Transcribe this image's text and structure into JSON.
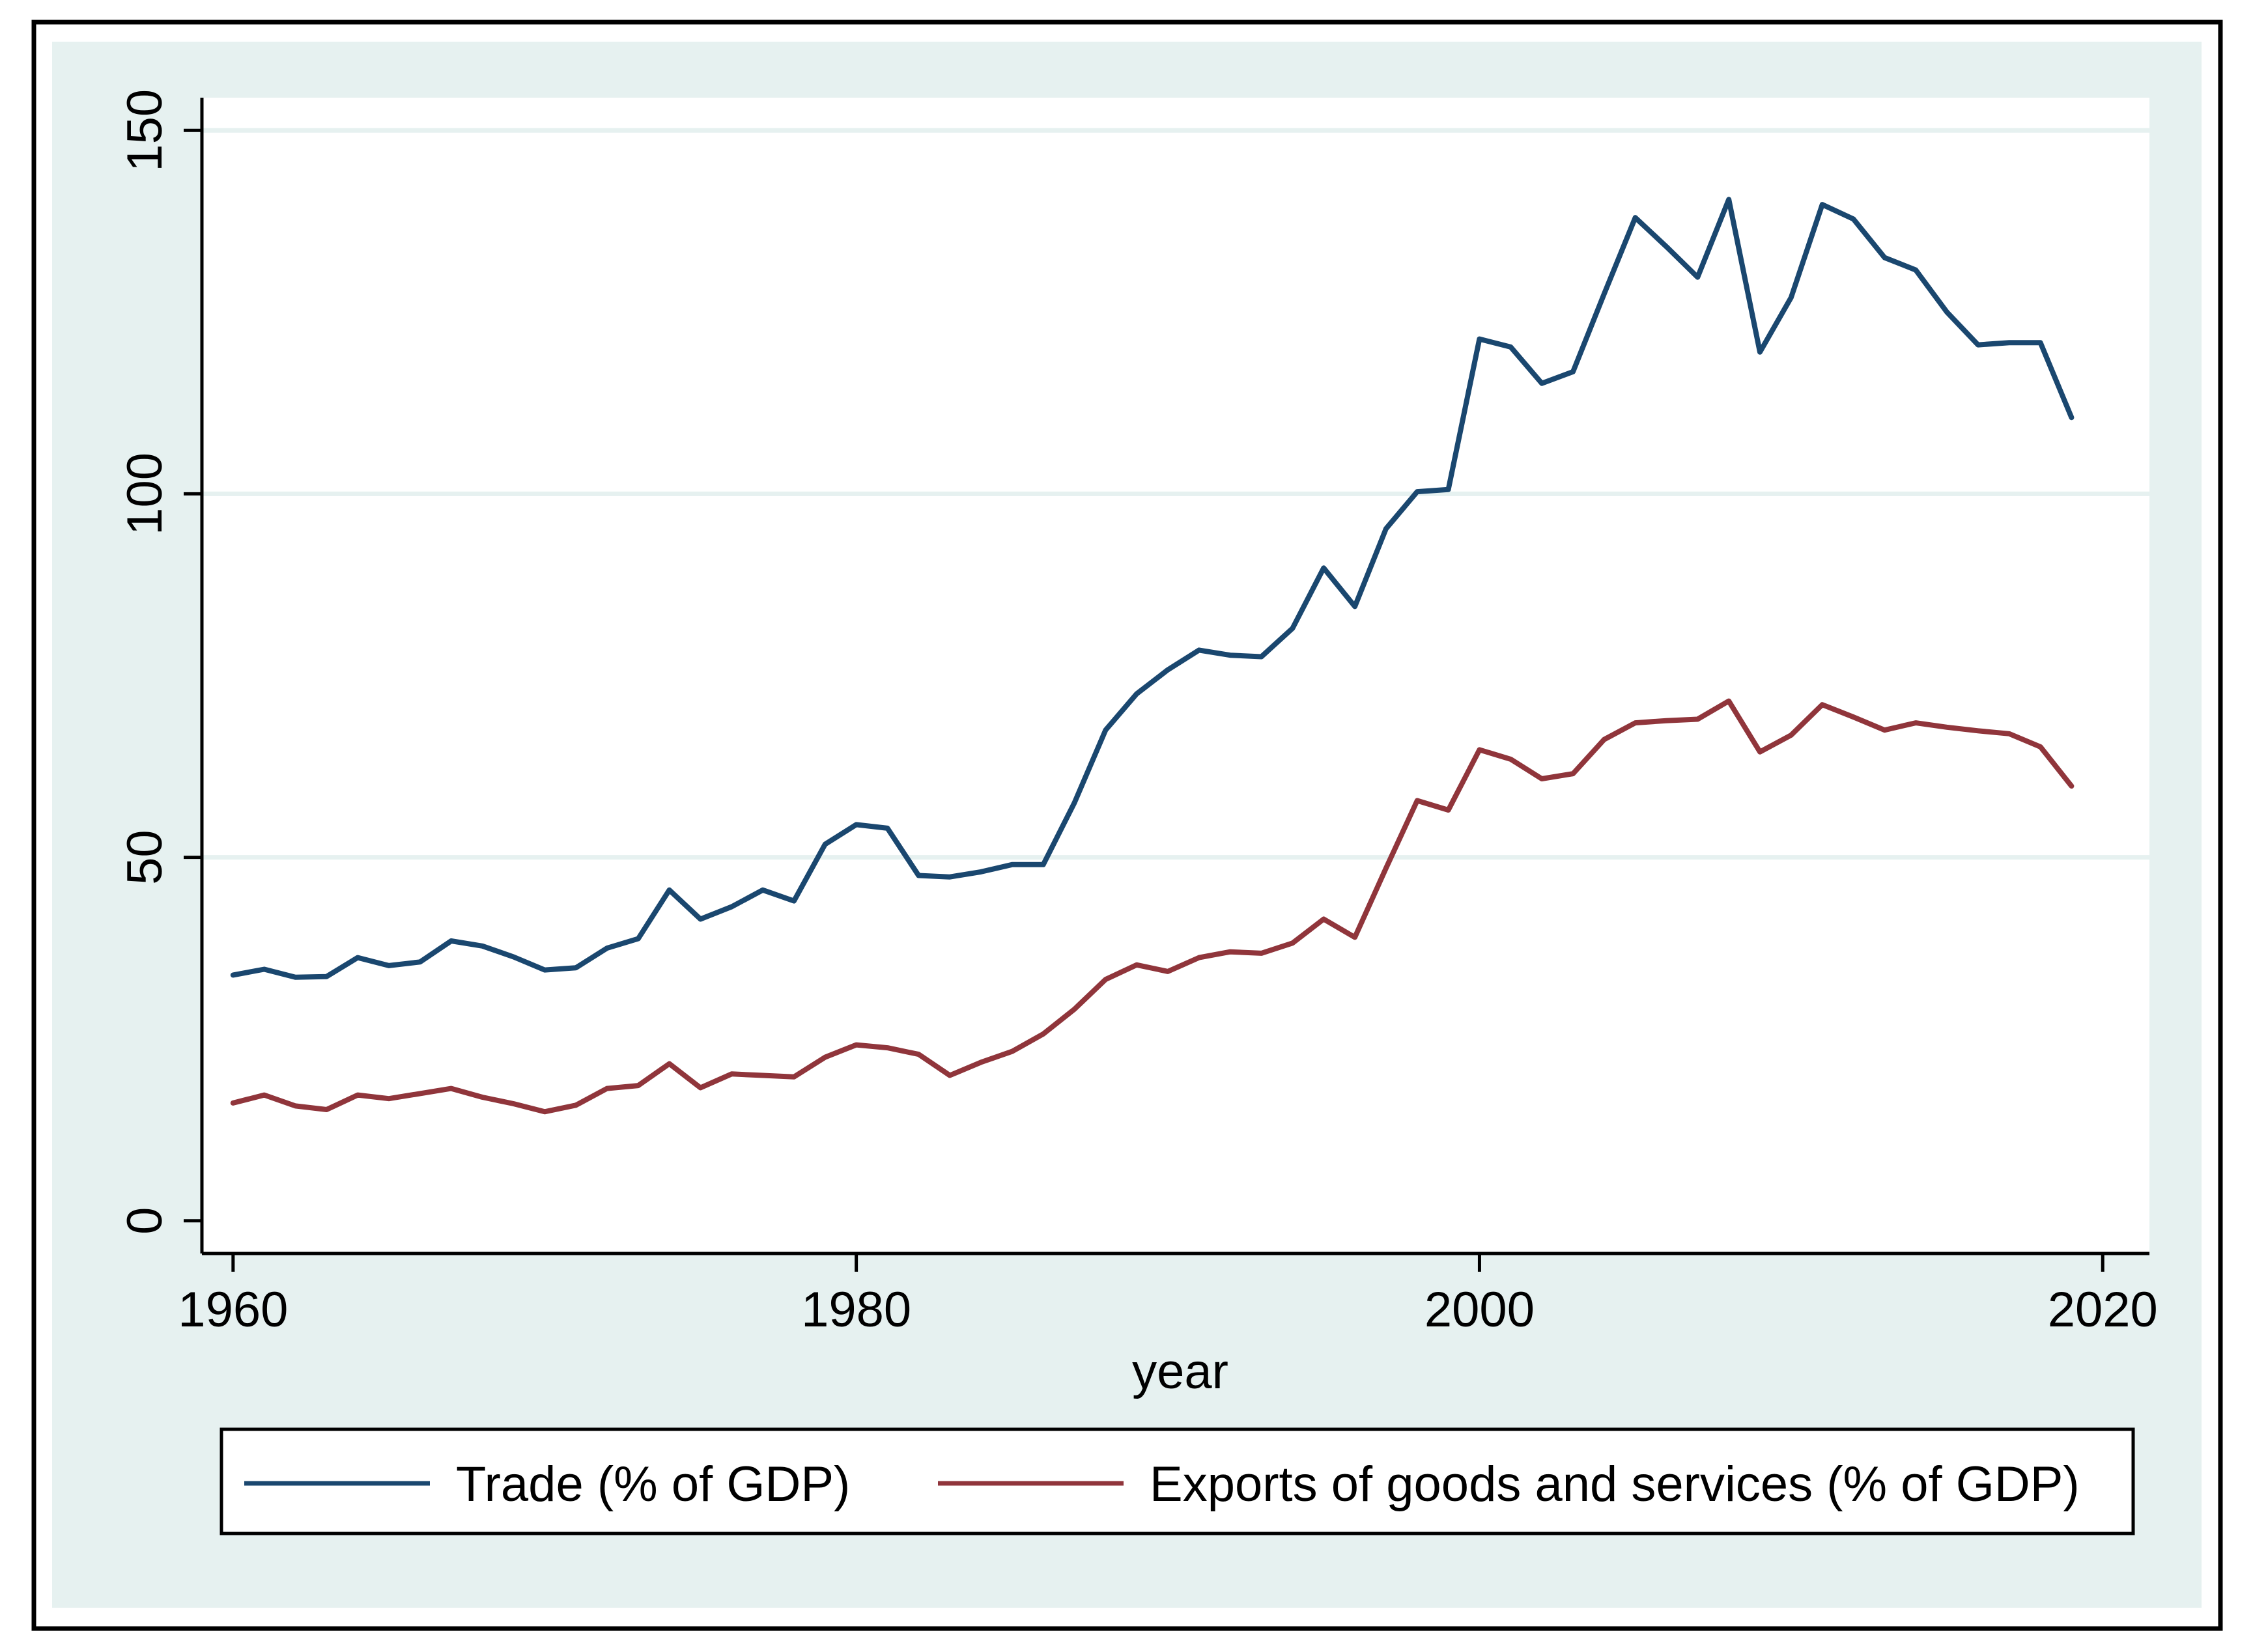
{
  "colors": {
    "outer_background": "#e6f1f0",
    "plot_background": "#ffffff",
    "gridline": "#e6f1f0",
    "trade": "#1a476f",
    "exports": "#90353b"
  },
  "chart_data": {
    "type": "line",
    "title": "",
    "xlabel": "year",
    "ylabel": "",
    "xlim": [
      1959,
      2021.5
    ],
    "ylim": [
      -4.5,
      154.5
    ],
    "xticks": [
      1960,
      1980,
      2000,
      2020
    ],
    "yticks": [
      0,
      50,
      100,
      150
    ],
    "grid": true,
    "legend_position": "bottom",
    "x": [
      1960,
      1961,
      1962,
      1963,
      1964,
      1965,
      1966,
      1967,
      1968,
      1969,
      1970,
      1971,
      1972,
      1973,
      1974,
      1975,
      1976,
      1977,
      1978,
      1979,
      1980,
      1981,
      1982,
      1983,
      1984,
      1985,
      1986,
      1987,
      1988,
      1989,
      1990,
      1991,
      1992,
      1993,
      1994,
      1995,
      1996,
      1997,
      1998,
      1999,
      2000,
      2001,
      2002,
      2003,
      2004,
      2005,
      2006,
      2007,
      2008,
      2009,
      2010,
      2011,
      2012,
      2013,
      2014,
      2015,
      2016,
      2017,
      2018,
      2019
    ],
    "series": [
      {
        "name": "Trade (% of GDP)",
        "color_key": "trade",
        "values": [
          33.8,
          34.6,
          33.5,
          33.6,
          36.2,
          35.1,
          35.6,
          38.5,
          37.8,
          36.3,
          34.5,
          34.8,
          37.5,
          38.8,
          45.5,
          41.5,
          43.2,
          45.5,
          44.0,
          51.8,
          54.5,
          54.0,
          47.5,
          47.3,
          48.0,
          49.0,
          49.0,
          57.5,
          67.5,
          72.5,
          75.8,
          78.5,
          77.8,
          77.6,
          81.5,
          89.8,
          84.5,
          95.2,
          100.3,
          100.6,
          121.3,
          120.2,
          115.2,
          116.8,
          127.5,
          138.0,
          134.0,
          129.8,
          140.5,
          119.5,
          127.0,
          139.8,
          137.8,
          132.5,
          130.8,
          125.0,
          120.5,
          120.8,
          120.8,
          110.5
        ]
      },
      {
        "name": "Exports of goods and services (% of GDP)",
        "color_key": "exports",
        "values": [
          16.2,
          17.3,
          15.8,
          15.3,
          17.3,
          16.8,
          17.5,
          18.2,
          17.0,
          16.1,
          15.0,
          15.9,
          18.2,
          18.6,
          21.6,
          18.3,
          20.2,
          20.0,
          19.8,
          22.5,
          24.2,
          23.8,
          22.9,
          20.0,
          21.8,
          23.3,
          25.7,
          29.1,
          33.2,
          35.2,
          34.3,
          36.2,
          37.0,
          36.8,
          38.2,
          41.5,
          39.0,
          48.5,
          57.8,
          56.5,
          64.8,
          63.5,
          60.8,
          61.5,
          66.2,
          68.5,
          68.8,
          69.0,
          71.5,
          64.5,
          66.8,
          71.0,
          69.3,
          67.5,
          68.5,
          67.9,
          67.4,
          67.0,
          65.2,
          59.8
        ]
      }
    ]
  }
}
